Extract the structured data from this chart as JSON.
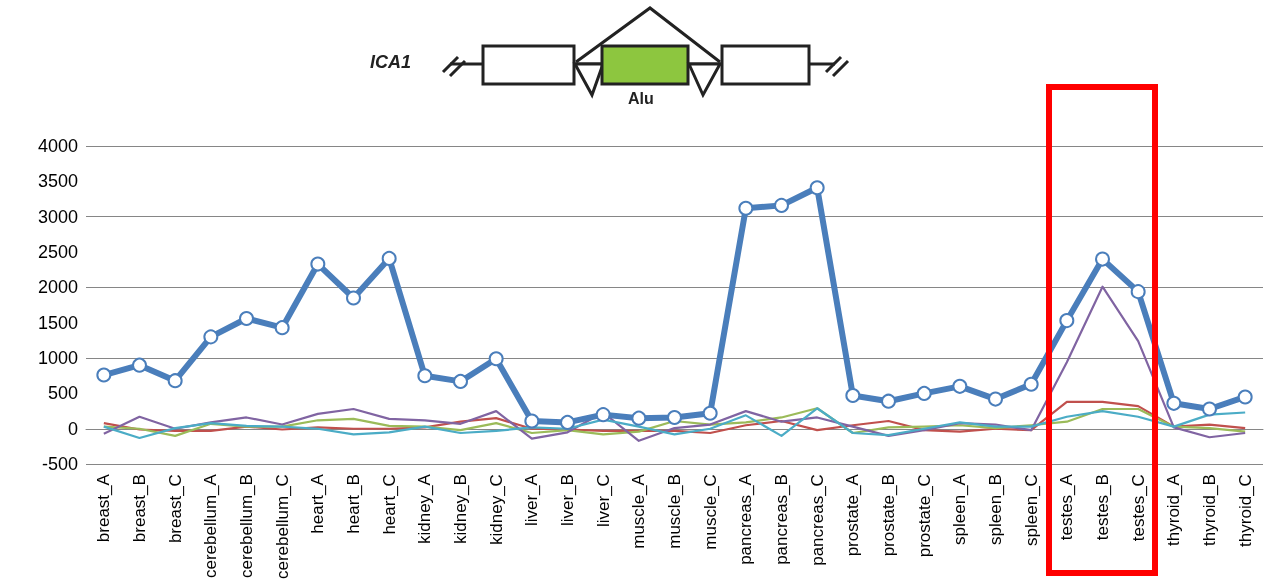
{
  "chart_data": {
    "type": "line",
    "categories": [
      "breast_A",
      "breast_B",
      "breast_C",
      "cerebellum_A",
      "cerebellum_B",
      "cerebellum_C",
      "heart_A",
      "heart_B",
      "heart_C",
      "kidney_A",
      "kidney_B",
      "kidney_C",
      "liver_A",
      "liver_B",
      "liver_C",
      "muscle_A",
      "muscle_B",
      "muscle_C",
      "pancreas_A",
      "pancreas_B",
      "pancreas_C",
      "prostate_A",
      "prostate_B",
      "prostate_C",
      "spleen_A",
      "spleen_B",
      "spleen_C",
      "testes_A",
      "testes_B",
      "testes_C",
      "thyroid_A",
      "thyroid_B",
      "thyroid_C"
    ],
    "series": [
      {
        "color": "#c0504d",
        "marker": "none",
        "values": [
          80,
          -10,
          -30,
          -30,
          30,
          -10,
          20,
          0,
          0,
          20,
          100,
          150,
          0,
          -10,
          -30,
          -30,
          -30,
          -60,
          50,
          110,
          -20,
          50,
          110,
          -20,
          -40,
          0,
          -20,
          380,
          380,
          320,
          30,
          60,
          10
        ]
      },
      {
        "color": "#9bbb59",
        "marker": "none",
        "values": [
          30,
          0,
          -100,
          70,
          30,
          30,
          120,
          140,
          40,
          30,
          -20,
          80,
          -60,
          -20,
          -80,
          -40,
          110,
          60,
          90,
          160,
          290,
          -60,
          20,
          30,
          50,
          10,
          50,
          100,
          280,
          280,
          30,
          10,
          -40
        ]
      },
      {
        "color": "#8064a2",
        "marker": "none",
        "values": [
          -70,
          170,
          0,
          90,
          160,
          60,
          210,
          280,
          140,
          120,
          70,
          250,
          -140,
          -50,
          230,
          -170,
          10,
          60,
          250,
          100,
          160,
          30,
          -100,
          -20,
          80,
          60,
          -20,
          940,
          2010,
          1240,
          20,
          -120,
          -60
        ]
      },
      {
        "color": "#4bacc6",
        "marker": "none",
        "values": [
          30,
          -130,
          10,
          80,
          40,
          30,
          0,
          -80,
          -50,
          30,
          -60,
          -30,
          20,
          0,
          130,
          30,
          -80,
          0,
          190,
          -100,
          290,
          -60,
          -90,
          0,
          90,
          30,
          30,
          170,
          250,
          170,
          30,
          200,
          230
        ]
      },
      {
        "color": "#4a7ebb",
        "marker": "circle",
        "values": [
          760,
          900,
          680,
          1300,
          1560,
          1430,
          2330,
          1850,
          2410,
          750,
          670,
          990,
          110,
          90,
          200,
          150,
          160,
          220,
          3120,
          3160,
          3410,
          470,
          390,
          500,
          600,
          420,
          630,
          1530,
          2400,
          1940,
          360,
          280,
          450
        ]
      }
    ],
    "ylim": [
      -500,
      4000
    ],
    "yticks": [
      -500,
      0,
      500,
      1000,
      1500,
      2000,
      2500,
      3000,
      3500,
      4000
    ],
    "grid": "y",
    "line_style": "solid",
    "annotations": [
      "ICA1",
      "Alu"
    ]
  }
}
